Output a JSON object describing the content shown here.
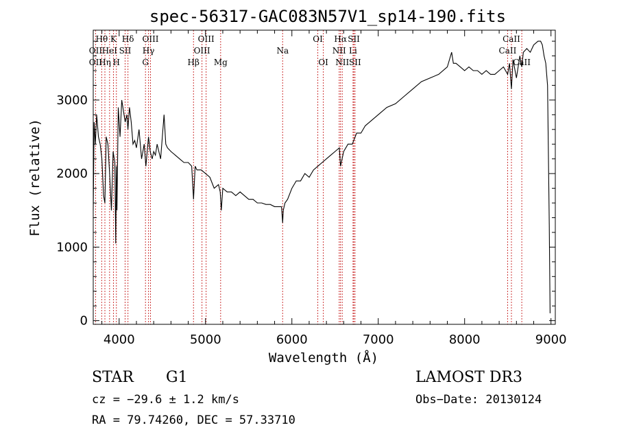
{
  "chart_data": {
    "type": "line",
    "title": "spec-56317-GAC083N57V1_sp14-190.fits",
    "xlabel": "Wavelength (Å)",
    "ylabel": "Flux (relative)",
    "xlim": [
      3700,
      9050
    ],
    "ylim": [
      -50,
      3950
    ],
    "xticks": [
      4000,
      5000,
      6000,
      7000,
      8000,
      9000
    ],
    "yticks": [
      0,
      1000,
      2000,
      3000
    ],
    "grid": false,
    "series": [
      {
        "color": "#000000",
        "x": [
          3700,
          3710,
          3725,
          3740,
          3760,
          3780,
          3800,
          3820,
          3835,
          3850,
          3870,
          3890,
          3910,
          3930,
          3950,
          3960,
          3968,
          3975,
          3990,
          4010,
          4030,
          4050,
          4070,
          4090,
          4102,
          4120,
          4140,
          4160,
          4180,
          4200,
          4230,
          4260,
          4290,
          4310,
          4340,
          4360,
          4383,
          4400,
          4420,
          4440,
          4460,
          4480,
          4500,
          4520,
          4540,
          4560,
          4600,
          4650,
          4700,
          4750,
          4800,
          4840,
          4861,
          4880,
          4900,
          4950,
          5000,
          5050,
          5100,
          5150,
          5170,
          5183,
          5200,
          5250,
          5300,
          5350,
          5400,
          5450,
          5500,
          5550,
          5600,
          5650,
          5700,
          5750,
          5800,
          5850,
          5880,
          5893,
          5900,
          5920,
          5950,
          6000,
          6050,
          6100,
          6150,
          6200,
          6250,
          6300,
          6350,
          6400,
          6450,
          6500,
          6550,
          6563,
          6600,
          6650,
          6700,
          6750,
          6800,
          6850,
          6900,
          6950,
          7000,
          7100,
          7200,
          7300,
          7400,
          7500,
          7600,
          7700,
          7800,
          7850,
          7870,
          7900,
          7950,
          8000,
          8050,
          8100,
          8150,
          8200,
          8250,
          8300,
          8350,
          8400,
          8450,
          8498,
          8520,
          8542,
          8560,
          8600,
          8640,
          8662,
          8680,
          8720,
          8760,
          8800,
          8850,
          8880,
          8900,
          8920,
          8940,
          8960,
          8980,
          8990
        ],
        "y": [
          1500,
          2700,
          2400,
          2800,
          2500,
          2400,
          2200,
          1700,
          1600,
          2500,
          2400,
          2000,
          1500,
          2300,
          2150,
          1050,
          2100,
          1500,
          2900,
          2500,
          3000,
          2850,
          2700,
          2800,
          2600,
          2900,
          2700,
          2400,
          2450,
          2350,
          2600,
          2200,
          2400,
          2100,
          2500,
          2300,
          2200,
          2300,
          2250,
          2400,
          2300,
          2200,
          2500,
          2800,
          2400,
          2350,
          2300,
          2250,
          2200,
          2150,
          2150,
          2100,
          1650,
          2100,
          2050,
          2050,
          2000,
          1950,
          1800,
          1850,
          1750,
          1500,
          1800,
          1750,
          1750,
          1700,
          1750,
          1700,
          1650,
          1650,
          1600,
          1600,
          1580,
          1580,
          1550,
          1550,
          1550,
          1330,
          1500,
          1600,
          1650,
          1800,
          1900,
          1900,
          2000,
          1950,
          2050,
          2100,
          2150,
          2200,
          2250,
          2300,
          2350,
          2100,
          2300,
          2400,
          2400,
          2550,
          2550,
          2650,
          2700,
          2750,
          2800,
          2900,
          2950,
          3050,
          3150,
          3250,
          3300,
          3350,
          3450,
          3650,
          3500,
          3500,
          3450,
          3400,
          3450,
          3400,
          3400,
          3350,
          3400,
          3350,
          3350,
          3400,
          3450,
          3350,
          3500,
          3150,
          3550,
          3300,
          3600,
          3450,
          3650,
          3700,
          3650,
          3750,
          3800,
          3800,
          3750,
          3600,
          3500,
          3200,
          1300,
          100
        ]
      }
    ],
    "spectral_lines": [
      {
        "label": "Hθ",
        "wavelength": 3798,
        "row": 1
      },
      {
        "label": "OII",
        "wavelength": 3727,
        "row": 2
      },
      {
        "label": "OII",
        "wavelength": 3727,
        "row": 3
      },
      {
        "label": "Hη",
        "wavelength": 3835,
        "row": 3
      },
      {
        "label": "HeI",
        "wavelength": 3889,
        "row": 2
      },
      {
        "label": "K",
        "wavelength": 3934,
        "row": 1
      },
      {
        "label": "SII",
        "wavelength": 4069,
        "row": 2
      },
      {
        "label": "H",
        "wavelength": 3968,
        "row": 3
      },
      {
        "label": "Hδ",
        "wavelength": 4102,
        "row": 1
      },
      {
        "label": "OIII",
        "wavelength": 4363,
        "row": 1
      },
      {
        "label": "Hγ",
        "wavelength": 4340,
        "row": 2
      },
      {
        "label": "G",
        "wavelength": 4305,
        "row": 3
      },
      {
        "label": "Hβ",
        "wavelength": 4861,
        "row": 3
      },
      {
        "label": "OIII",
        "wavelength": 5007,
        "row": 1
      },
      {
        "label": "OIII",
        "wavelength": 4959,
        "row": 2
      },
      {
        "label": "Mg",
        "wavelength": 5175,
        "row": 3
      },
      {
        "label": "Na",
        "wavelength": 5893,
        "row": 2
      },
      {
        "label": "OI",
        "wavelength": 6300,
        "row": 1
      },
      {
        "label": "OI",
        "wavelength": 6364,
        "row": 3
      },
      {
        "label": "Hα",
        "wavelength": 6563,
        "row": 1
      },
      {
        "label": "SII",
        "wavelength": 6717,
        "row": 1
      },
      {
        "label": "NII",
        "wavelength": 6548,
        "row": 2
      },
      {
        "label": "Li",
        "wavelength": 6708,
        "row": 2
      },
      {
        "label": "NII",
        "wavelength": 6583,
        "row": 3
      },
      {
        "label": "SII",
        "wavelength": 6731,
        "row": 3
      },
      {
        "label": "CaII",
        "wavelength": 8542,
        "row": 1
      },
      {
        "label": "CaII",
        "wavelength": 8498,
        "row": 2
      },
      {
        "label": "CaII",
        "wavelength": 8662,
        "row": 3
      }
    ],
    "line_color": "#cc3333"
  },
  "info": {
    "object_class": "STAR",
    "subclass": "G1",
    "survey": "LAMOST DR3",
    "redshift": "cz = −29.6 ± 1.2 km/s",
    "obs_date": "Obs−Date: 20130124",
    "coords": "RA =  79.74260, DEC =  57.33710"
  }
}
